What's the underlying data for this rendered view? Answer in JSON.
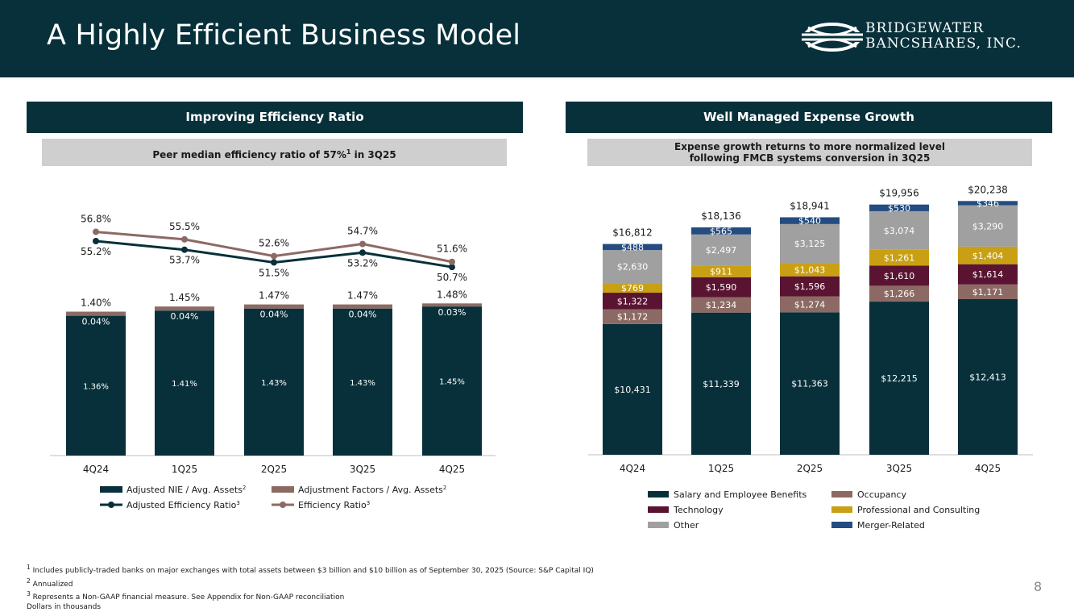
{
  "header": {
    "title": "A Highly Efficient Business Model",
    "logo_line1": "BRIDGEWATER",
    "logo_line2": "BANCSHARES, INC.",
    "colors": {
      "background": "#07303a",
      "text": "#ffffff"
    }
  },
  "left_panel": {
    "heading": "Improving Efficiency Ratio",
    "subheading_pre": "Peer median efficiency ratio of 57%",
    "subheading_sup": "1",
    "subheading_post": " in 3Q25"
  },
  "right_panel": {
    "heading": "Well Managed Expense Growth",
    "subheading_line1": "Expense growth returns to more normalized level",
    "subheading_line2": "following FMCB systems conversion in 3Q25"
  },
  "chart_data": [
    {
      "type": "bar",
      "stacked": true,
      "categories": [
        "4Q24",
        "1Q25",
        "2Q25",
        "3Q25",
        "4Q25"
      ],
      "series": [
        {
          "name": "Adjusted NIE / Avg. Assets",
          "name_sup": "2",
          "color": "#07303a",
          "values": [
            1.36,
            1.41,
            1.43,
            1.43,
            1.45
          ],
          "labels": [
            "1.36%",
            "1.41%",
            "1.43%",
            "1.43%",
            "1.45%"
          ]
        },
        {
          "name": "Adjustment Factors / Avg. Assets",
          "name_sup": "2",
          "color": "#8c6a63",
          "values": [
            0.04,
            0.04,
            0.04,
            0.04,
            0.03
          ],
          "labels": [
            "0.04%",
            "0.04%",
            "0.04%",
            "0.04%",
            "0.03%"
          ]
        }
      ],
      "totals": [
        "1.40%",
        "1.45%",
        "1.47%",
        "1.47%",
        "1.48%"
      ],
      "lines": [
        {
          "name": "Adjusted Efficiency Ratio",
          "name_sup": "3",
          "color": "#07303a",
          "values": [
            55.2,
            53.7,
            51.5,
            53.2,
            50.7
          ],
          "labels": [
            "55.2%",
            "53.7%",
            "51.5%",
            "53.2%",
            "50.7%"
          ]
        },
        {
          "name": "Efficiency Ratio",
          "name_sup": "3",
          "color": "#8c6a63",
          "values": [
            56.8,
            55.5,
            52.6,
            54.7,
            51.6
          ],
          "labels": [
            "56.8%",
            "55.5%",
            "52.6%",
            "54.7%",
            "51.6%"
          ]
        }
      ]
    },
    {
      "type": "bar",
      "stacked": true,
      "categories": [
        "4Q24",
        "1Q25",
        "2Q25",
        "3Q25",
        "4Q25"
      ],
      "series": [
        {
          "name": "Salary and Employee Benefits",
          "color": "#07303a",
          "values": [
            10431,
            11339,
            11363,
            12215,
            12413
          ],
          "labels": [
            "$10,431",
            "$11,339",
            "$11,363",
            "$12,215",
            "$12,413"
          ]
        },
        {
          "name": "Occupancy",
          "color": "#8c6a63",
          "values": [
            1172,
            1234,
            1274,
            1266,
            1171
          ],
          "labels": [
            "$1,172",
            "$1,234",
            "$1,274",
            "$1,266",
            "$1,171"
          ]
        },
        {
          "name": "Technology",
          "color": "#5a1432",
          "values": [
            1322,
            1590,
            1596,
            1610,
            1614
          ],
          "labels": [
            "$1,322",
            "$1,590",
            "$1,596",
            "$1,610",
            "$1,614"
          ]
        },
        {
          "name": "Professional and Consulting",
          "color": "#c9a013",
          "values": [
            769,
            911,
            1043,
            1261,
            1404
          ],
          "labels": [
            "$769",
            "$911",
            "$1,043",
            "$1,261",
            "$1,404"
          ]
        },
        {
          "name": "Other",
          "color": "#a0a0a0",
          "values": [
            2630,
            2497,
            3125,
            3074,
            3290
          ],
          "labels": [
            "$2,630",
            "$2,497",
            "$3,125",
            "$3,074",
            "$3,290"
          ]
        },
        {
          "name": "Merger-Related",
          "color": "#244c80",
          "values": [
            488,
            565,
            540,
            530,
            346
          ],
          "labels": [
            "$488",
            "$565",
            "$540",
            "$530",
            "$346"
          ]
        }
      ],
      "totals": [
        "$16,812",
        "$18,136",
        "$18,941",
        "$19,956",
        "$20,238"
      ]
    }
  ],
  "footnotes": [
    {
      "sup": "1",
      "text": "Includes publicly-traded banks on major exchanges with total assets between $3 billion and $10 billion as of September 30, 2025 (Source: S&P Capital IQ)"
    },
    {
      "sup": "2",
      "text": "Annualized"
    },
    {
      "sup": "3",
      "text": "Represents a Non-GAAP financial measure. See Appendix for Non-GAAP reconciliation"
    },
    {
      "sup": "",
      "text": "Dollars in thousands"
    }
  ],
  "page_number": "8"
}
